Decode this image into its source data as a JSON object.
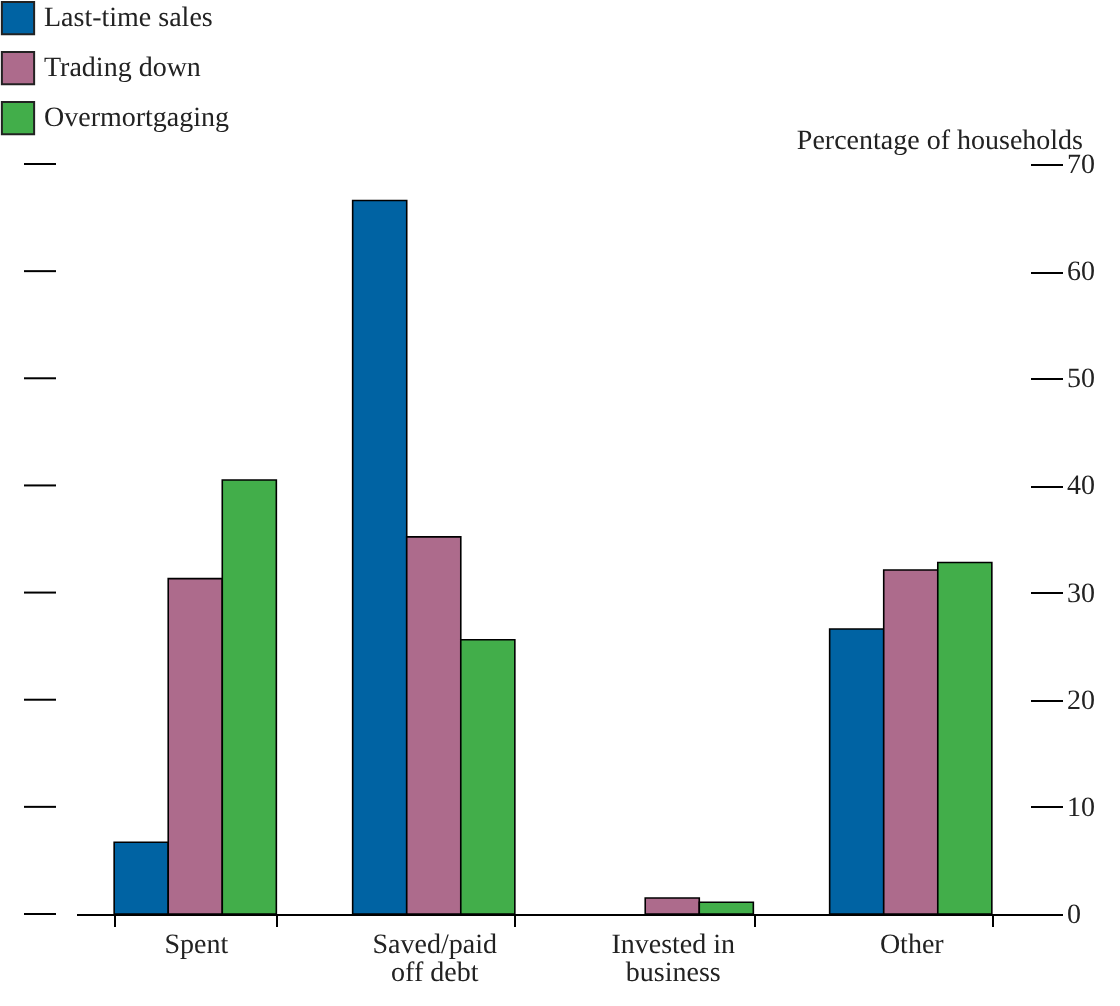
{
  "chart_data": {
    "type": "bar",
    "ylabel": "Percentage of households",
    "categories": [
      "Spent",
      "Saved/paid off debt",
      "Invested in business",
      "Other"
    ],
    "series": [
      {
        "name": "Last-time sales",
        "color": "#0063a3",
        "values": [
          6.7,
          66.6,
          null,
          26.6
        ]
      },
      {
        "name": "Trading down",
        "color": "#ad6b8c",
        "values": [
          31.3,
          35.2,
          1.5,
          32.1
        ]
      },
      {
        "name": "Overmortgaging",
        "color": "#42ae4a",
        "values": [
          40.5,
          25.6,
          1.1,
          32.8
        ]
      }
    ],
    "ylim": [
      0,
      70
    ],
    "yticks": [
      0,
      10,
      20,
      30,
      40,
      50,
      60,
      70
    ],
    "grid": false,
    "legend": "top left"
  }
}
